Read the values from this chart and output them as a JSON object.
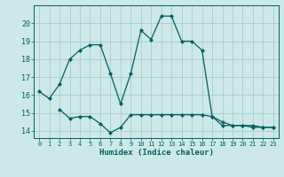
{
  "line1_x": [
    0,
    1,
    2,
    3,
    4,
    5,
    6,
    7,
    8,
    9,
    10,
    11,
    12,
    13,
    14,
    15,
    16,
    17,
    18,
    19,
    20,
    21,
    22,
    23
  ],
  "line1_y": [
    16.2,
    15.8,
    16.6,
    18.0,
    18.5,
    18.8,
    18.8,
    17.2,
    15.5,
    17.2,
    19.6,
    19.1,
    20.4,
    20.4,
    19.0,
    19.0,
    18.5,
    14.8,
    14.5,
    14.3,
    14.3,
    14.3,
    14.2,
    14.2
  ],
  "line2_x": [
    2,
    3,
    4,
    5,
    6,
    7,
    8,
    9,
    10,
    11,
    12,
    13,
    14,
    15,
    16,
    17,
    18,
    19,
    20,
    21,
    22,
    23
  ],
  "line2_y": [
    15.2,
    14.7,
    14.8,
    14.8,
    14.4,
    13.9,
    14.2,
    14.9,
    14.9,
    14.9,
    14.9,
    14.9,
    14.9,
    14.9,
    14.9,
    14.8,
    14.3,
    14.3,
    14.3,
    14.2,
    14.2,
    14.2
  ],
  "line_color": "#006060",
  "bg_color": "#cce8e8",
  "grid_color": "#aacccc",
  "xlabel": "Humidex (Indice chaleur)",
  "ylim": [
    13.6,
    21.0
  ],
  "xlim": [
    -0.5,
    23.5
  ],
  "yticks": [
    14,
    15,
    16,
    17,
    18,
    19,
    20
  ],
  "xtick_labels": [
    "0",
    "1",
    "2",
    "3",
    "4",
    "5",
    "6",
    "7",
    "8",
    "9",
    "10",
    "11",
    "12",
    "13",
    "14",
    "15",
    "16",
    "17",
    "18",
    "19",
    "20",
    "21",
    "22",
    "23"
  ]
}
